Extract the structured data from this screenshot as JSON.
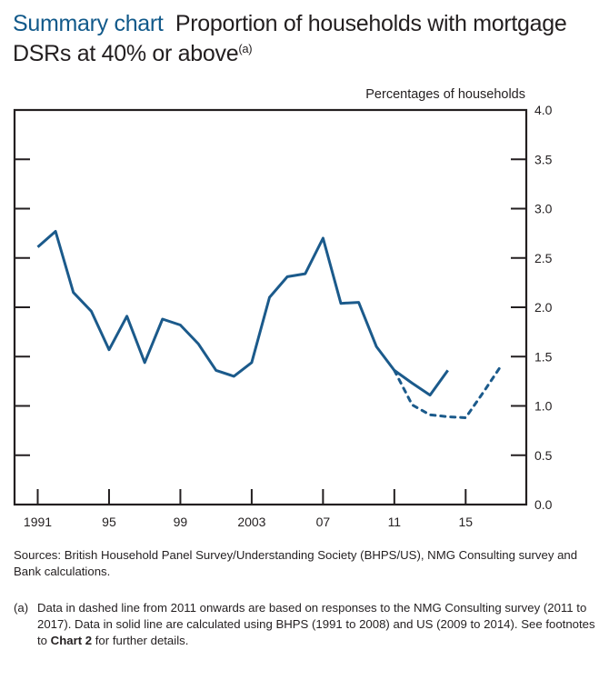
{
  "title": {
    "lead": "Summary chart",
    "text": "Proportion of households with mortgage DSRs at 40% or above",
    "note_marker": "(a)"
  },
  "colors": {
    "accent": "#11598a",
    "series": "#1b5a8b",
    "axis": "#231f20"
  },
  "chart_data": {
    "type": "line",
    "title": "Proportion of households with mortgage DSRs at 40% or above",
    "ylabel": "Percentages of households",
    "xlabel": "",
    "ylim": [
      0.0,
      4.0
    ],
    "xlim": [
      1989.7,
      2018.4
    ],
    "y_ticks": [
      "0.0",
      "0.5",
      "1.0",
      "1.5",
      "2.0",
      "2.5",
      "3.0",
      "3.5",
      "4.0"
    ],
    "y_tick_values": [
      0.0,
      0.5,
      1.0,
      1.5,
      2.0,
      2.5,
      3.0,
      3.5,
      4.0
    ],
    "x_ticks": [
      "1991",
      "95",
      "99",
      "2003",
      "07",
      "11",
      "15"
    ],
    "x_tick_values": [
      1991,
      1995,
      1999,
      2003,
      2007,
      2011,
      2015
    ],
    "y_axis_side": "right",
    "grid": false,
    "series": [
      {
        "name": "BHPS/US",
        "style": "solid",
        "x": [
          1991,
          1992,
          1993,
          1994,
          1995,
          1996,
          1997,
          1998,
          1999,
          2000,
          2001,
          2002,
          2003,
          2004,
          2005,
          2006,
          2007,
          2008,
          2009,
          2010,
          2011,
          2012,
          2013,
          2014
        ],
        "values": [
          2.61,
          2.77,
          2.15,
          1.96,
          1.57,
          1.91,
          1.44,
          1.88,
          1.82,
          1.63,
          1.36,
          1.3,
          1.44,
          2.1,
          2.31,
          2.34,
          2.7,
          2.04,
          2.05,
          1.6,
          1.36,
          1.23,
          1.11,
          1.36
        ]
      },
      {
        "name": "NMG Consulting survey",
        "style": "dashed",
        "x": [
          2011,
          2012,
          2013,
          2014,
          2015,
          2016,
          2017
        ],
        "values": [
          1.36,
          1.01,
          0.91,
          0.89,
          0.88,
          1.14,
          1.41
        ]
      }
    ]
  },
  "sources": "Sources:  British Household Panel Survey/Understanding Society (BHPS/US), NMG Consulting survey and Bank calculations.",
  "footnote": {
    "marker": "(a)",
    "text_before": "Data in dashed line from 2011 onwards are based on responses to the NMG Consulting survey (2011 to 2017).  Data in solid line are calculated using BHPS (1991 to 2008) and US (2009 to 2014).  See footnotes to ",
    "bold": "Chart 2",
    "text_after": " for further details."
  }
}
